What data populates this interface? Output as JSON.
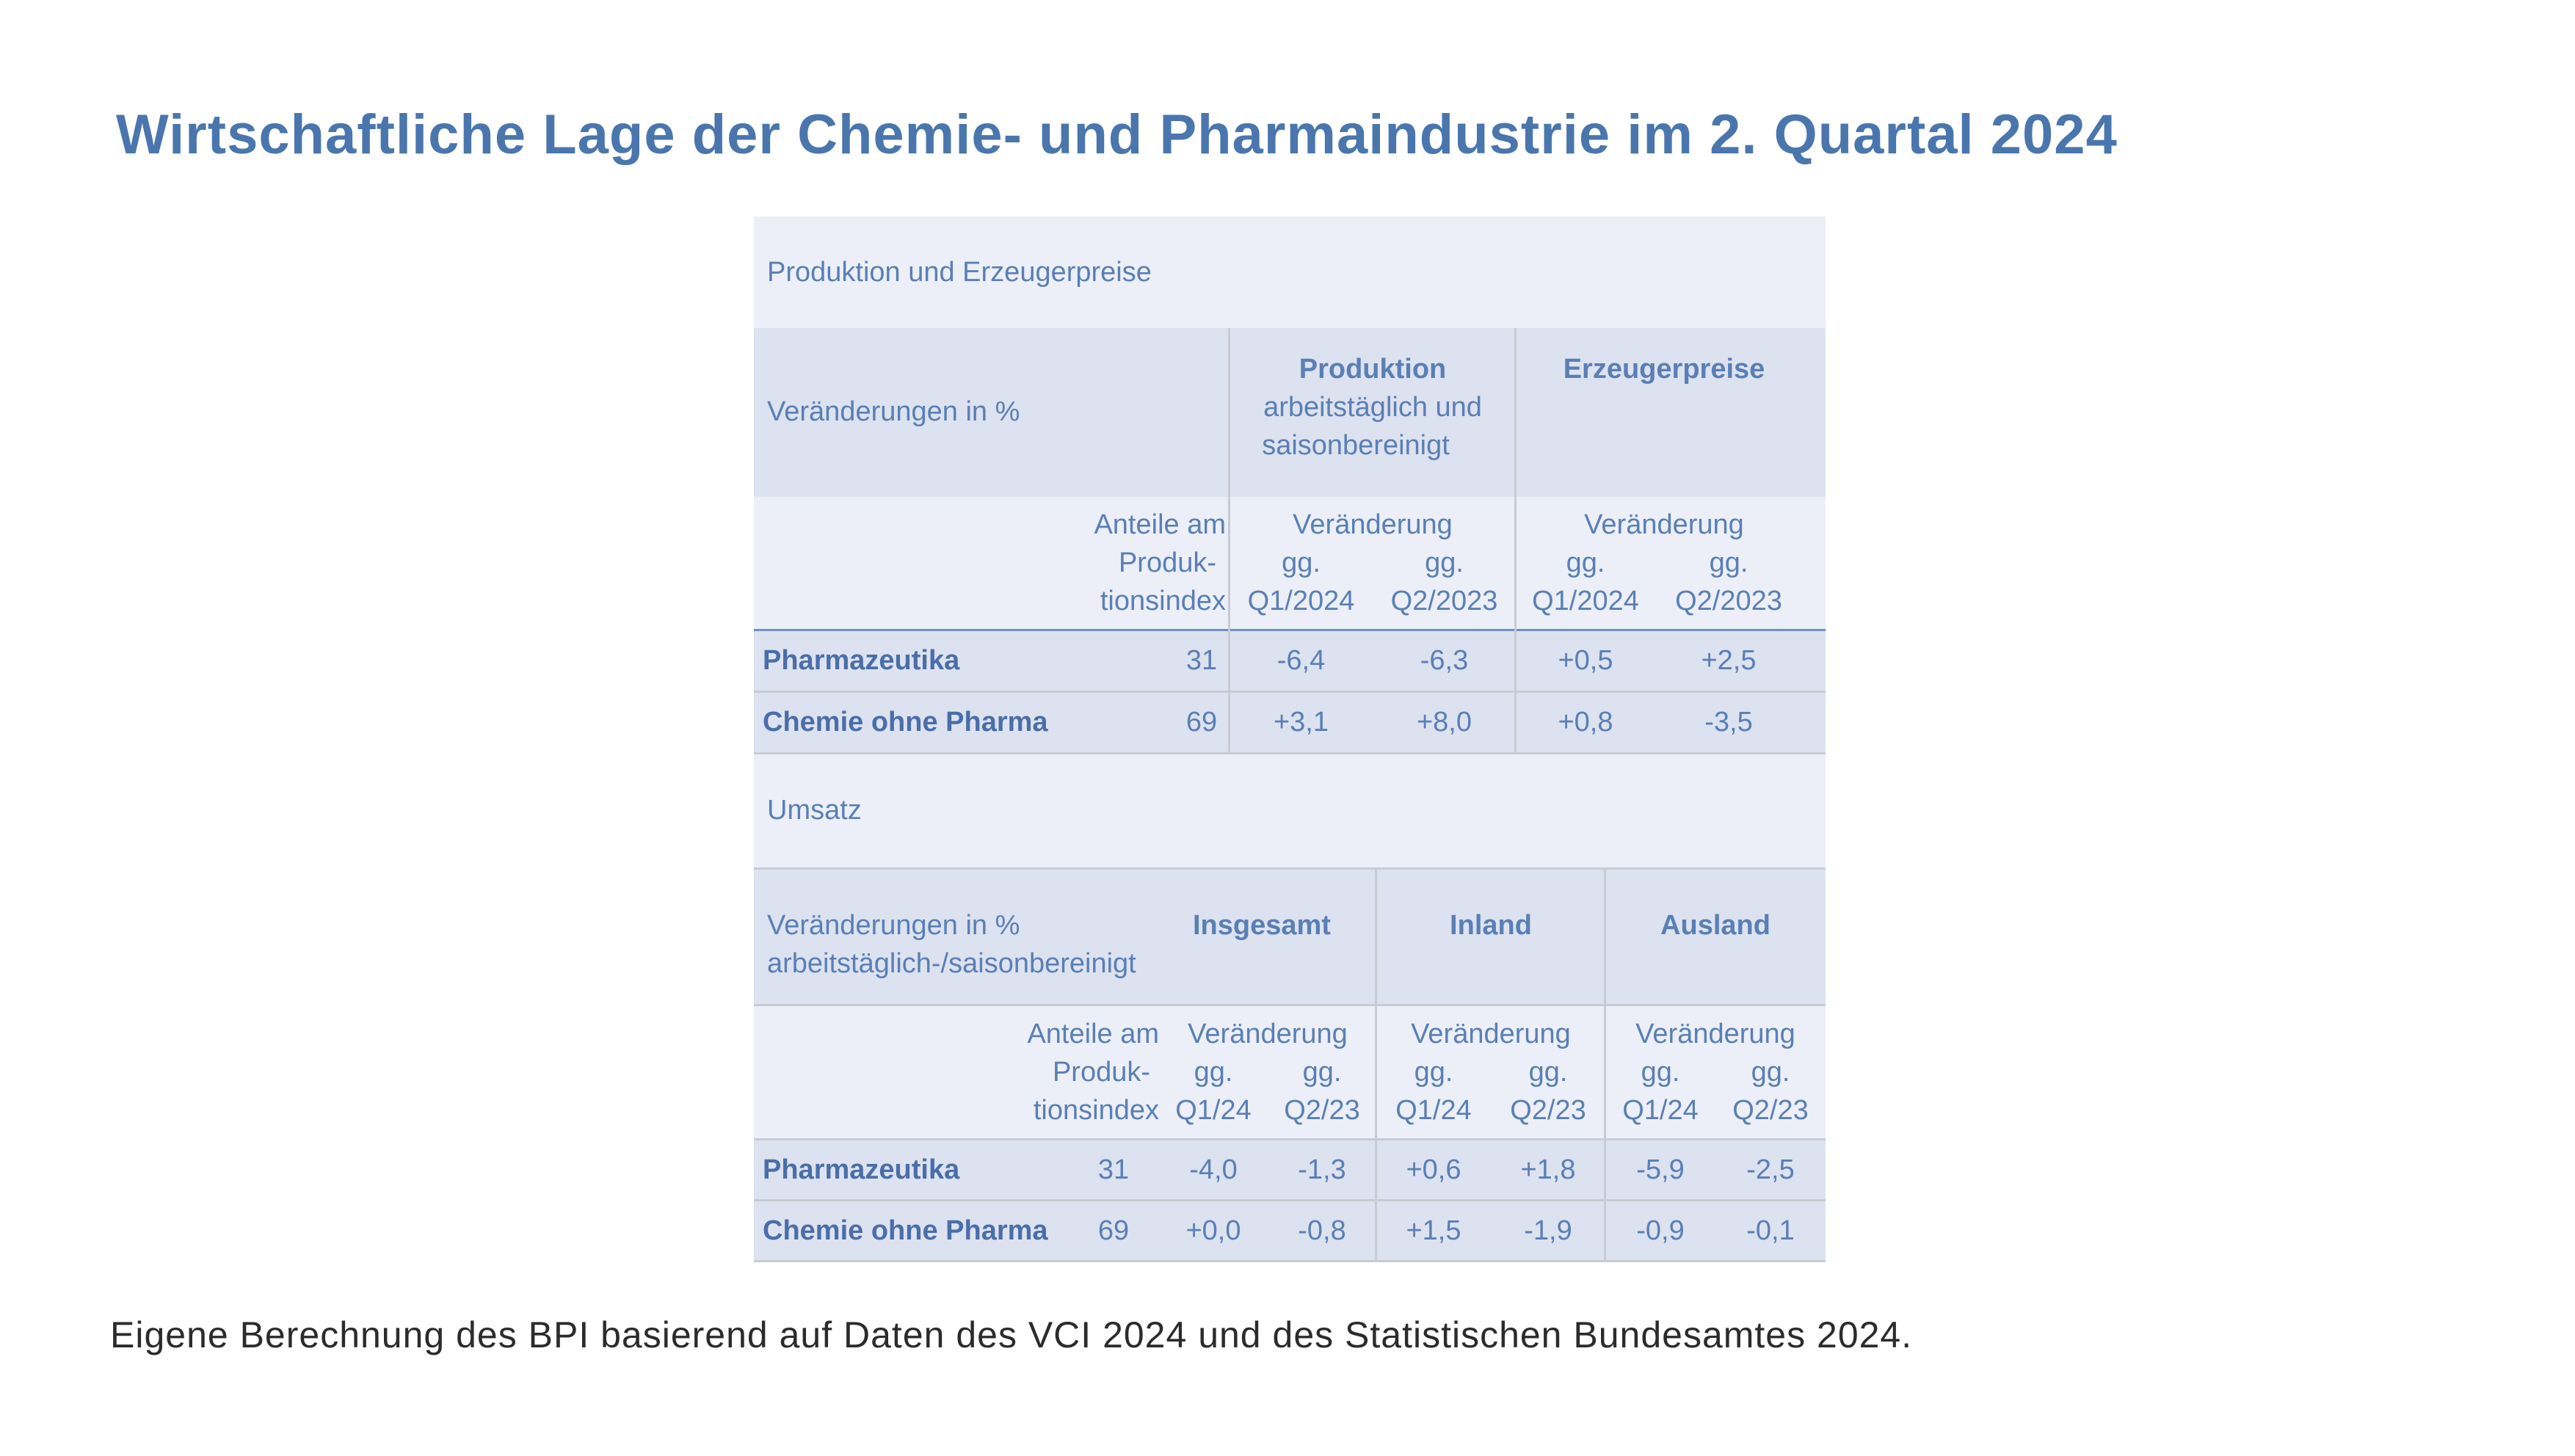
{
  "title": "Wirtschaftliche Lage der Chemie- und Pharmaindustrie im 2. Quartal 2024",
  "footnote": "Eigene Berechnung des BPI basierend auf Daten des VCI 2024 und des Statistischen Bundesamtes 2024.",
  "section1": {
    "heading": "Produktion und Erzeugerpreise",
    "header_left": "Veränderungen in %",
    "group1_title": "Produktion",
    "group1_sub1": "arbeitstäglich und",
    "group1_sub2": "saisonbereinigt",
    "group2_title": "Erzeugerpreise",
    "share_l1": "Anteile am",
    "share_l2": "Produk-",
    "share_l3": "tionsindex",
    "change_label": "Veränderung",
    "gg": "gg.",
    "p1": "Q1/2024",
    "p2": "Q2/2023",
    "rows": [
      {
        "name": "Pharmazeutika",
        "share": "31",
        "prod_q1": "-6,4",
        "prod_q2": "-6,3",
        "price_q1": "+0,5",
        "price_q2": "+2,5"
      },
      {
        "name": "Chemie ohne Pharma",
        "share": "69",
        "prod_q1": "+3,1",
        "prod_q2": "+8,0",
        "price_q1": "+0,8",
        "price_q2": "-3,5"
      }
    ]
  },
  "section2": {
    "heading": "Umsatz",
    "header_left_l1": "Veränderungen in %",
    "header_left_l2": "arbeitstäglich-/saisonbereinigt",
    "group1_title": "Insgesamt",
    "group2_title": "Inland",
    "group3_title": "Ausland",
    "share_l1": "Anteile am",
    "share_l2": "Produk-",
    "share_l3": "tionsindex",
    "change_label": "Veränderung",
    "gg": "gg.",
    "p1": "Q1/24",
    "p2": "Q2/23",
    "rows": [
      {
        "name": "Pharmazeutika",
        "share": "31",
        "tot_q1": "-4,0",
        "tot_q2": "-1,3",
        "in_q1": "+0,6",
        "in_q2": "+1,8",
        "aus_q1": "-5,9",
        "aus_q2": "-2,5"
      },
      {
        "name": "Chemie ohne Pharma",
        "share": "69",
        "tot_q1": "+0,0",
        "tot_q2": "-0,8",
        "in_q1": "+1,5",
        "in_q2": "-1,9",
        "aus_q1": "-0,9",
        "aus_q2": "-0,1"
      }
    ]
  }
}
